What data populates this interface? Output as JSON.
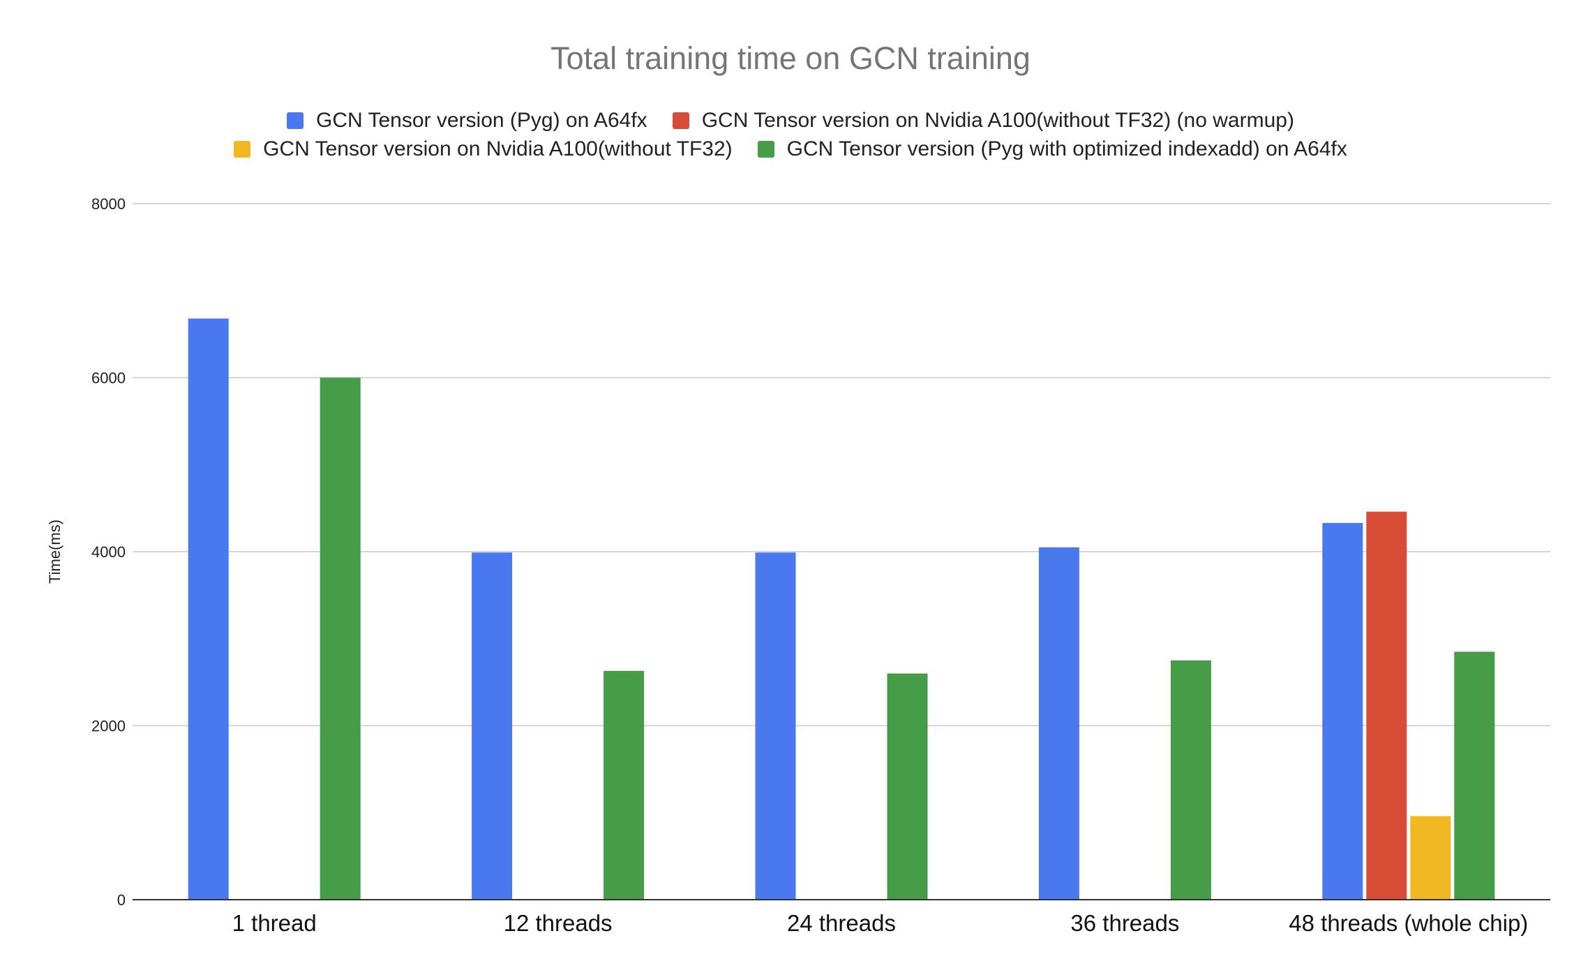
{
  "chart_data": {
    "type": "bar",
    "title": "Total training time on GCN training",
    "xlabel": "",
    "ylabel": "Time(ms)",
    "ylim": [
      0,
      8000
    ],
    "yticks": [
      0,
      2000,
      4000,
      6000,
      8000
    ],
    "grid": true,
    "legend_position": "top",
    "categories": [
      "1 thread",
      "12 threads",
      "24 threads",
      "36 threads",
      "48 threads (whole chip)"
    ],
    "series": [
      {
        "name": "GCN Tensor version (Pyg) on A64fx",
        "color": "#4a78ef",
        "values": [
          6680,
          3990,
          3990,
          4050,
          4330
        ]
      },
      {
        "name": "GCN Tensor version on Nvidia A100(without TF32) (no warmup)",
        "color": "#d84b35",
        "values": [
          null,
          null,
          null,
          null,
          4460
        ]
      },
      {
        "name": "GCN Tensor version on Nvidia A100(without TF32)",
        "color": "#f1b822",
        "values": [
          null,
          null,
          null,
          null,
          960
        ]
      },
      {
        "name": "GCN Tensor version (Pyg with optimized indexadd) on A64fx",
        "color": "#469c47",
        "values": [
          6000,
          2630,
          2600,
          2750,
          2850
        ]
      }
    ]
  }
}
